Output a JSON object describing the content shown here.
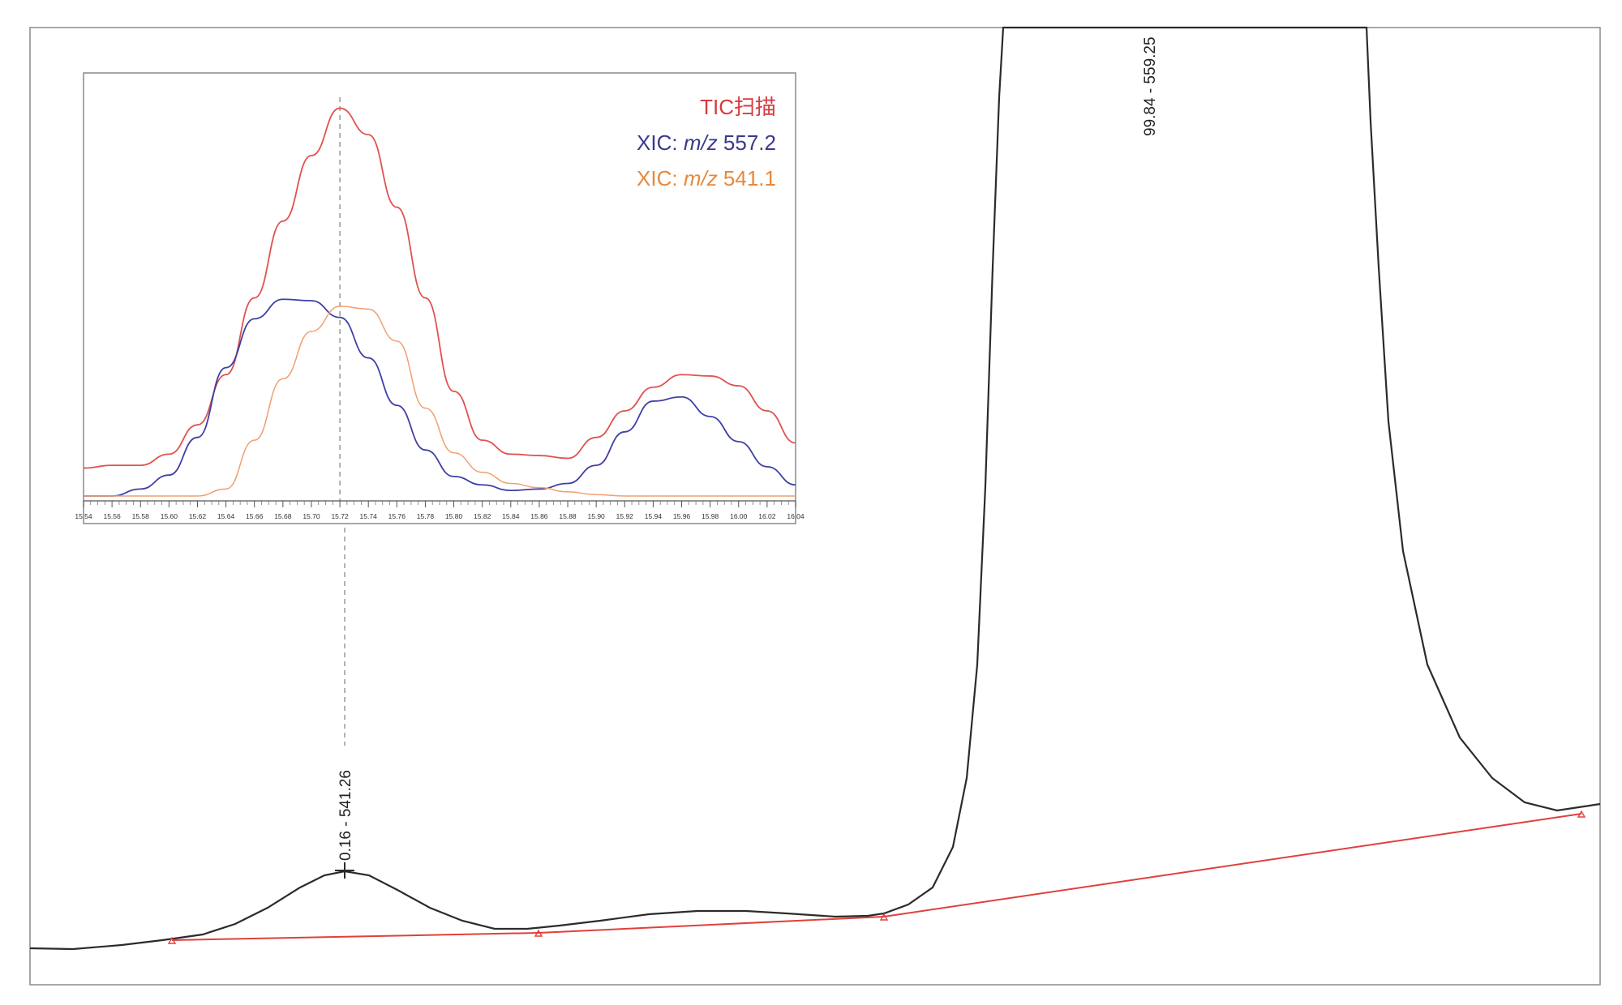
{
  "chart_data": [
    {
      "type": "line",
      "description_role": "main-chromatogram",
      "trace_color": "#2b2b2b",
      "peaks": [
        {
          "label": "0.16 - 541.26"
        },
        {
          "label": "99.84 - 559.25"
        }
      ],
      "baseline_color": "#e0403c"
    },
    {
      "type": "line",
      "description_role": "inset-extracted-ion-chromatograms",
      "x_tick_labels": [
        "15.54",
        "15.56",
        "15.58",
        "15.60",
        "15.62",
        "15.64",
        "15.66",
        "15.68",
        "15.70",
        "15.72",
        "15.74",
        "15.76",
        "15.78",
        "15.80",
        "15.82",
        "15.84",
        "15.86",
        "15.88",
        "15.90",
        "15.92",
        "15.94",
        "15.96",
        "15.98",
        "16.00",
        "16.02",
        "16.04"
      ],
      "xlim": [
        15.54,
        16.04
      ],
      "marker_x": 15.72,
      "legend": [
        {
          "prefix": "TIC扫描",
          "italic": "",
          "suffix": "",
          "color": "#d8393f"
        },
        {
          "prefix": "XIC: ",
          "italic": "m/z",
          "suffix": " 557.2",
          "color": "#3a3a8c"
        },
        {
          "prefix": "XIC: ",
          "italic": "m/z",
          "suffix": " 541.1",
          "color": "#e8883a"
        }
      ],
      "series": [
        {
          "color": "#e0524f",
          "x": [
            15.54,
            15.56,
            15.58,
            15.6,
            15.62,
            15.64,
            15.66,
            15.68,
            15.7,
            15.72,
            15.74,
            15.76,
            15.78,
            15.8,
            15.82,
            15.84,
            15.86,
            15.88,
            15.9,
            15.92,
            15.94,
            15.96,
            15.98,
            16.0,
            16.02,
            16.04
          ],
          "values": [
            20,
            22,
            22,
            30,
            51,
            87,
            142,
            197,
            244,
            278,
            259,
            207,
            142,
            75,
            40,
            30,
            29,
            27,
            42,
            61,
            78,
            87,
            86,
            79,
            61,
            38
          ]
        },
        {
          "color": "#3f3fa5",
          "x": [
            15.54,
            15.56,
            15.58,
            15.6,
            15.62,
            15.64,
            15.66,
            15.68,
            15.7,
            15.72,
            15.74,
            15.76,
            15.78,
            15.8,
            15.82,
            15.84,
            15.86,
            15.88,
            15.9,
            15.92,
            15.94,
            15.96,
            15.98,
            16.0,
            16.02,
            16.04
          ],
          "values": [
            0,
            0,
            5,
            15,
            42,
            92,
            127,
            141,
            140,
            128,
            99,
            65,
            33,
            14,
            8,
            4,
            5,
            9,
            22,
            46,
            68,
            71,
            57,
            39,
            21,
            8
          ]
        },
        {
          "color": "#f0a070",
          "x": [
            15.54,
            15.56,
            15.58,
            15.6,
            15.62,
            15.64,
            15.66,
            15.68,
            15.7,
            15.72,
            15.74,
            15.76,
            15.78,
            15.8,
            15.82,
            15.84,
            15.86,
            15.88,
            15.9,
            15.92,
            15.94,
            15.96,
            15.98,
            16.0,
            16.02,
            16.04
          ],
          "values": [
            0,
            0,
            0,
            0,
            0,
            5,
            40,
            84,
            118,
            136,
            134,
            111,
            63,
            31,
            17,
            9,
            6,
            3,
            1,
            0,
            0,
            0,
            0,
            0,
            0,
            0
          ]
        }
      ]
    }
  ]
}
